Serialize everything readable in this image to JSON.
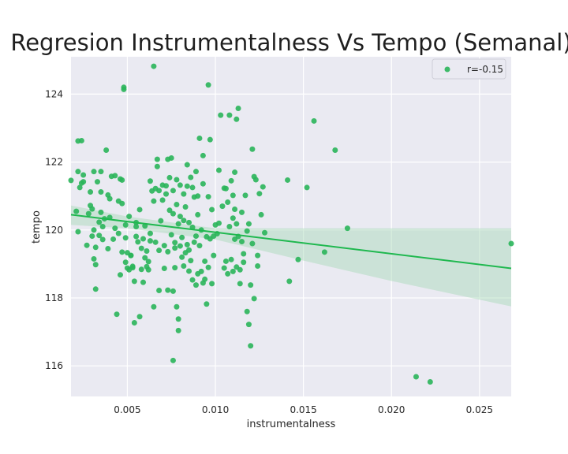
{
  "chart_data": {
    "type": "scatter",
    "title": "Regresion Instrumentalness Vs Tempo (Semanal)",
    "xlabel": "instrumentalness",
    "ylabel": "tempo",
    "xlim": [
      0.0018,
      0.0268
    ],
    "ylim": [
      115.1,
      125.1
    ],
    "xticks": [
      0.005,
      0.01,
      0.015,
      0.02,
      0.025
    ],
    "xtick_labels": [
      "0.005",
      "0.010",
      "0.015",
      "0.020",
      "0.025"
    ],
    "yticks": [
      116,
      118,
      120,
      122,
      124
    ],
    "ytick_labels": [
      "116",
      "118",
      "120",
      "122",
      "124"
    ],
    "grid": true,
    "legend": {
      "position": "top-right",
      "label": "r=-0.15"
    },
    "colors": {
      "points": "#2ab55a",
      "line": "#1fb84f",
      "band": "#a6d9b6",
      "background": "#eaeaf2",
      "grid": "#ffffff"
    },
    "regression": {
      "x": [
        0.0018,
        0.005,
        0.01,
        0.015,
        0.02,
        0.0268
      ],
      "y": [
        120.45,
        120.23,
        119.89,
        119.55,
        119.21,
        118.87
      ],
      "ci_upper": [
        120.72,
        120.4,
        120.05,
        120.05,
        120.05,
        120.05
      ],
      "ci_lower": [
        120.15,
        120.05,
        119.72,
        119.1,
        118.5,
        117.75
      ]
    },
    "points": [
      [
        0.0018,
        121.46
      ],
      [
        0.0021,
        120.55
      ],
      [
        0.0022,
        121.72
      ],
      [
        0.0022,
        122.62
      ],
      [
        0.0022,
        119.95
      ],
      [
        0.0023,
        121.25
      ],
      [
        0.0024,
        121.38
      ],
      [
        0.0024,
        122.63
      ],
      [
        0.0025,
        121.42
      ],
      [
        0.0025,
        121.62
      ],
      [
        0.0027,
        119.55
      ],
      [
        0.0028,
        120.48
      ],
      [
        0.0029,
        120.72
      ],
      [
        0.0029,
        121.12
      ],
      [
        0.003,
        119.82
      ],
      [
        0.003,
        120.62
      ],
      [
        0.0031,
        121.72
      ],
      [
        0.0031,
        120.0
      ],
      [
        0.0031,
        119.15
      ],
      [
        0.0032,
        119.49
      ],
      [
        0.0032,
        118.98
      ],
      [
        0.0032,
        118.26
      ],
      [
        0.0033,
        121.42
      ],
      [
        0.0034,
        119.84
      ],
      [
        0.0034,
        120.23
      ],
      [
        0.0035,
        120.52
      ],
      [
        0.0035,
        121.12
      ],
      [
        0.0035,
        121.72
      ],
      [
        0.0036,
        119.72
      ],
      [
        0.0036,
        120.1
      ],
      [
        0.0037,
        120.33
      ],
      [
        0.0038,
        122.35
      ],
      [
        0.0039,
        121.03
      ],
      [
        0.0039,
        119.45
      ],
      [
        0.004,
        120.37
      ],
      [
        0.004,
        120.92
      ],
      [
        0.0041,
        121.58
      ],
      [
        0.0042,
        119.73
      ],
      [
        0.0043,
        121.6
      ],
      [
        0.0043,
        120.05
      ],
      [
        0.0044,
        117.52
      ],
      [
        0.0045,
        120.85
      ],
      [
        0.0045,
        119.9
      ],
      [
        0.0046,
        118.68
      ],
      [
        0.0046,
        121.5
      ],
      [
        0.0047,
        119.35
      ],
      [
        0.0047,
        120.78
      ],
      [
        0.0047,
        121.47
      ],
      [
        0.0048,
        124.2
      ],
      [
        0.0048,
        124.14
      ],
      [
        0.0049,
        120.15
      ],
      [
        0.0049,
        119.05
      ],
      [
        0.0049,
        119.77
      ],
      [
        0.005,
        119.33
      ],
      [
        0.005,
        118.88
      ],
      [
        0.0051,
        120.4
      ],
      [
        0.0051,
        118.83
      ],
      [
        0.0052,
        119.25
      ],
      [
        0.0052,
        119.25
      ],
      [
        0.0053,
        118.93
      ],
      [
        0.0053,
        118.89
      ],
      [
        0.0054,
        117.27
      ],
      [
        0.0054,
        118.49
      ],
      [
        0.0055,
        119.81
      ],
      [
        0.0055,
        120.22
      ],
      [
        0.0055,
        120.1
      ],
      [
        0.0056,
        119.65
      ],
      [
        0.0057,
        120.6
      ],
      [
        0.0057,
        117.45
      ],
      [
        0.0058,
        119.46
      ],
      [
        0.0058,
        118.84
      ],
      [
        0.0059,
        119.74
      ],
      [
        0.0059,
        118.46
      ],
      [
        0.006,
        120.12
      ],
      [
        0.006,
        119.18
      ],
      [
        0.0061,
        118.92
      ],
      [
        0.0061,
        119.38
      ],
      [
        0.0062,
        119.07
      ],
      [
        0.0062,
        118.83
      ],
      [
        0.0063,
        119.9
      ],
      [
        0.0063,
        119.68
      ],
      [
        0.0063,
        121.44
      ],
      [
        0.0064,
        121.15
      ],
      [
        0.0065,
        124.82
      ],
      [
        0.0065,
        117.74
      ],
      [
        0.0065,
        120.85
      ],
      [
        0.0066,
        119.64
      ],
      [
        0.0066,
        121.22
      ],
      [
        0.0067,
        122.08
      ],
      [
        0.0067,
        121.87
      ],
      [
        0.0068,
        121.16
      ],
      [
        0.0068,
        119.4
      ],
      [
        0.0068,
        118.22
      ],
      [
        0.0069,
        120.27
      ],
      [
        0.007,
        121.32
      ],
      [
        0.007,
        120.88
      ],
      [
        0.0071,
        119.54
      ],
      [
        0.0071,
        118.87
      ],
      [
        0.0072,
        121.06
      ],
      [
        0.0072,
        121.3
      ],
      [
        0.0073,
        122.08
      ],
      [
        0.0073,
        119.36
      ],
      [
        0.0073,
        118.23
      ],
      [
        0.0074,
        121.54
      ],
      [
        0.0074,
        120.58
      ],
      [
        0.0075,
        122.12
      ],
      [
        0.0075,
        119.86
      ],
      [
        0.0076,
        120.48
      ],
      [
        0.0076,
        121.16
      ],
      [
        0.0076,
        118.2
      ],
      [
        0.0076,
        116.16
      ],
      [
        0.0077,
        119.47
      ],
      [
        0.0077,
        119.63
      ],
      [
        0.0077,
        118.89
      ],
      [
        0.0078,
        120.75
      ],
      [
        0.0078,
        121.48
      ],
      [
        0.0078,
        117.74
      ],
      [
        0.0079,
        117.38
      ],
      [
        0.0079,
        117.04
      ],
      [
        0.0079,
        120.18
      ],
      [
        0.008,
        120.4
      ],
      [
        0.008,
        119.53
      ],
      [
        0.008,
        121.32
      ],
      [
        0.0081,
        119.2
      ],
      [
        0.0081,
        119.78
      ],
      [
        0.0082,
        120.28
      ],
      [
        0.0082,
        121.06
      ],
      [
        0.0082,
        118.94
      ],
      [
        0.0083,
        119.33
      ],
      [
        0.0083,
        120.68
      ],
      [
        0.0084,
        121.92
      ],
      [
        0.0084,
        119.57
      ],
      [
        0.0084,
        121.29
      ],
      [
        0.0085,
        119.41
      ],
      [
        0.0085,
        118.79
      ],
      [
        0.0085,
        120.22
      ],
      [
        0.0086,
        121.55
      ],
      [
        0.0086,
        119.1
      ],
      [
        0.0087,
        120.08
      ],
      [
        0.0087,
        121.25
      ],
      [
        0.0087,
        118.53
      ],
      [
        0.0088,
        120.97
      ],
      [
        0.0088,
        119.64
      ],
      [
        0.0089,
        121.72
      ],
      [
        0.0089,
        118.38
      ],
      [
        0.0089,
        119.82
      ],
      [
        0.009,
        120.45
      ],
      [
        0.009,
        121.0
      ],
      [
        0.009,
        118.71
      ],
      [
        0.0091,
        122.7
      ],
      [
        0.0091,
        119.54
      ],
      [
        0.0092,
        120.0
      ],
      [
        0.0092,
        118.78
      ],
      [
        0.0093,
        121.36
      ],
      [
        0.0093,
        122.19
      ],
      [
        0.0093,
        118.44
      ],
      [
        0.0094,
        119.08
      ],
      [
        0.0094,
        118.55
      ],
      [
        0.0095,
        117.82
      ],
      [
        0.0095,
        119.8
      ],
      [
        0.0096,
        124.27
      ],
      [
        0.0096,
        120.98
      ],
      [
        0.0096,
        118.9
      ],
      [
        0.0097,
        119.74
      ],
      [
        0.0097,
        122.66
      ],
      [
        0.0098,
        120.6
      ],
      [
        0.0098,
        118.42
      ],
      [
        0.0099,
        119.25
      ],
      [
        0.0099,
        119.82
      ],
      [
        0.01,
        120.15
      ],
      [
        0.0101,
        119.89
      ],
      [
        0.0102,
        121.76
      ],
      [
        0.0102,
        120.2
      ],
      [
        0.0103,
        123.38
      ],
      [
        0.0104,
        120.7
      ],
      [
        0.0105,
        118.88
      ],
      [
        0.0105,
        121.23
      ],
      [
        0.0106,
        121.22
      ],
      [
        0.0106,
        119.08
      ],
      [
        0.0107,
        120.82
      ],
      [
        0.0107,
        118.71
      ],
      [
        0.0108,
        123.38
      ],
      [
        0.0108,
        120.1
      ],
      [
        0.0109,
        119.13
      ],
      [
        0.0109,
        121.45
      ],
      [
        0.011,
        118.78
      ],
      [
        0.011,
        120.35
      ],
      [
        0.011,
        121.02
      ],
      [
        0.0111,
        120.61
      ],
      [
        0.0111,
        119.73
      ],
      [
        0.0111,
        121.7
      ],
      [
        0.0112,
        123.26
      ],
      [
        0.0112,
        118.91
      ],
      [
        0.0112,
        120.18
      ],
      [
        0.0113,
        123.58
      ],
      [
        0.0113,
        119.81
      ],
      [
        0.0114,
        118.83
      ],
      [
        0.0114,
        118.42
      ],
      [
        0.0115,
        119.66
      ],
      [
        0.0115,
        120.52
      ],
      [
        0.0116,
        119.05
      ],
      [
        0.0116,
        119.3
      ],
      [
        0.0117,
        121.02
      ],
      [
        0.0118,
        119.97
      ],
      [
        0.0118,
        117.6
      ],
      [
        0.0119,
        120.18
      ],
      [
        0.0119,
        117.22
      ],
      [
        0.012,
        118.38
      ],
      [
        0.012,
        116.59
      ],
      [
        0.0121,
        122.38
      ],
      [
        0.0121,
        119.6
      ],
      [
        0.0122,
        117.98
      ],
      [
        0.0122,
        121.57
      ],
      [
        0.0123,
        121.48
      ],
      [
        0.0124,
        119.25
      ],
      [
        0.0124,
        118.94
      ],
      [
        0.0125,
        121.07
      ],
      [
        0.0126,
        120.45
      ],
      [
        0.0127,
        121.27
      ],
      [
        0.0128,
        119.92
      ],
      [
        0.0141,
        121.47
      ],
      [
        0.0142,
        118.49
      ],
      [
        0.0147,
        119.13
      ],
      [
        0.0152,
        121.25
      ],
      [
        0.0156,
        123.21
      ],
      [
        0.0162,
        119.35
      ],
      [
        0.0168,
        122.35
      ],
      [
        0.0175,
        120.05
      ],
      [
        0.0214,
        115.68
      ],
      [
        0.0222,
        115.53
      ],
      [
        0.0268,
        119.6
      ]
    ]
  }
}
